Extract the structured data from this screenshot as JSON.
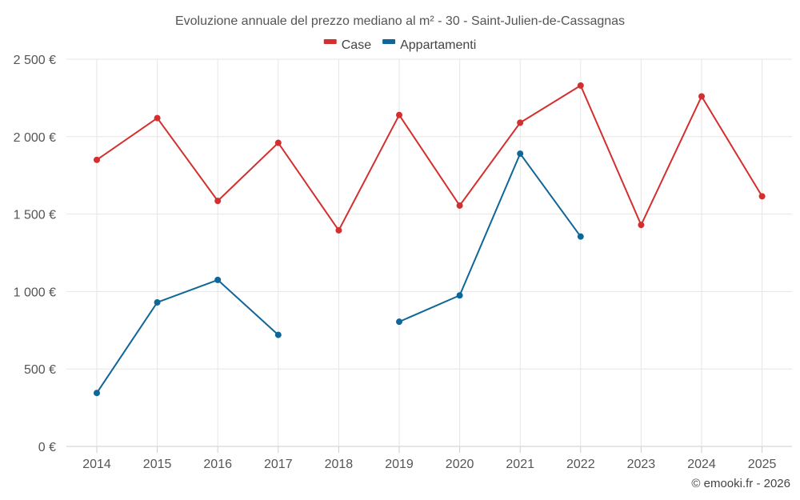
{
  "chart_data": {
    "type": "line",
    "title": "Evoluzione annuale del prezzo mediano al m² - 30 - Saint-Julien-de-Cassagnas",
    "categories": [
      "2014",
      "2015",
      "2016",
      "2017",
      "2018",
      "2019",
      "2020",
      "2021",
      "2022",
      "2023",
      "2024",
      "2025"
    ],
    "ylim": [
      0,
      2500
    ],
    "yticks": [
      0,
      500,
      1000,
      1500,
      2000,
      2500
    ],
    "ytick_labels": [
      "0 €",
      "500 €",
      "1 000 €",
      "1 500 €",
      "2 000 €",
      "2 500 €"
    ],
    "grid": true,
    "legend_position": "top-center",
    "series": [
      {
        "name": "Case",
        "color": "#d32f2f",
        "values": [
          1850,
          2120,
          1585,
          1960,
          1395,
          2140,
          1555,
          2090,
          2330,
          1430,
          2260,
          1615
        ]
      },
      {
        "name": "Appartamenti",
        "color": "#0e6699",
        "values": [
          345,
          930,
          1075,
          720,
          null,
          805,
          975,
          1890,
          1355,
          null,
          null,
          null
        ]
      }
    ]
  },
  "credit": "© emooki.fr - 2026"
}
